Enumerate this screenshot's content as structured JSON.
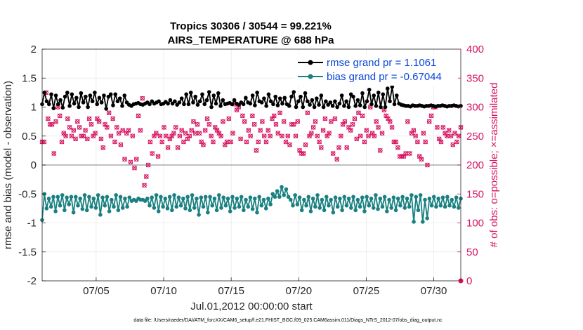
{
  "chart_data": {
    "type": "line",
    "title": "Tropics 30306 / 30544 = 99.221%",
    "subtitle": "AIRS_TEMPERATURE @ 688 hPa",
    "xlabel": "Jul.01,2012 00:00:00 start",
    "ylabel_left": "rmse and bias (model - observation)",
    "ylabel_right": "# of obs: o=possible; ×=assimilated",
    "footnote": "data file: /Users/raeder/DAI/ATM_forcXX/CAM6_setup/f.e21.FHIST_BGC.f09_025.CAM6assim.011/Diags_NTrS_2012-07/obs_diag_output.nc",
    "xlim": [
      1.0,
      32.0
    ],
    "ylim_left": [
      -2,
      2
    ],
    "ylim_right": [
      0,
      400
    ],
    "x_ticks": [
      5,
      10,
      15,
      20,
      25,
      30
    ],
    "x_tick_labels": [
      "07/05",
      "07/10",
      "07/15",
      "07/20",
      "07/25",
      "07/30"
    ],
    "y_left_ticks": [
      -2,
      -1.5,
      -1,
      -0.5,
      0,
      0.5,
      1,
      1.5,
      2
    ],
    "y_left_tick_labels": [
      "-2",
      "-1.5",
      "-1",
      "-0.5",
      "0",
      "0.5",
      "1",
      "1.5",
      "2"
    ],
    "y_right_ticks": [
      0,
      50,
      100,
      150,
      200,
      250,
      300,
      350,
      400
    ],
    "y_right_tick_labels": [
      "0",
      "50",
      "100",
      "150",
      "200",
      "250",
      "300",
      "350",
      "400"
    ],
    "grid": true,
    "legend_position": "top-right",
    "series": [
      {
        "name": "rmse grand pr = 1.1061",
        "axis": "left",
        "color": "#000000",
        "values": [
          1.05,
          1.25,
          1.1,
          1.05,
          1.22,
          0.98,
          1.2,
          1.05,
          1.12,
          0.99,
          1.18,
          1.25,
          1.02,
          1.22,
          1.06,
          1.16,
          1.0,
          1.24,
          1.08,
          1.18,
          1.0,
          1.2,
          1.1,
          1.25,
          1.05,
          1.16,
          1.08,
          1.2,
          0.97,
          1.18,
          1.22,
          1.03,
          1.22,
          1.1,
          1.15,
          1.02,
          1.2,
          1.08,
          1.04,
          1.02,
          1.05,
          1.06,
          1.07,
          1.05,
          1.04,
          1.06,
          1.08,
          1.05,
          1.1,
          1.06,
          1.08,
          1.1,
          1.05,
          1.06,
          1.09,
          1.06,
          1.12,
          1.06,
          1.1,
          1.04,
          1.08,
          1.15,
          1.05,
          1.22,
          1.05,
          1.25,
          1.08,
          1.18,
          1.04,
          1.1,
          1.22,
          1.05,
          1.12,
          1.26,
          1.0,
          1.2,
          1.06,
          1.24,
          1.02,
          1.12,
          1.05,
          1.06,
          1.07,
          1.05,
          1.12,
          1.06,
          1.04,
          1.08,
          1.05,
          1.16,
          1.08,
          1.06,
          1.2,
          1.03,
          1.25,
          1.1,
          1.08,
          1.15,
          1.02,
          1.22,
          1.1,
          1.05,
          1.18,
          1.03,
          1.15,
          1.06,
          1.16,
          1.05,
          1.02,
          1.18,
          1.26,
          1.0,
          1.1,
          1.18,
          1.0,
          1.24,
          1.1,
          1.04,
          1.12,
          1.0,
          1.15,
          1.04,
          1.2,
          1.0,
          1.1,
          1.04,
          1.08,
          1.02,
          1.1,
          1.0,
          1.06,
          1.2,
          1.02,
          1.1,
          1.0,
          1.22,
          1.18,
          1.02,
          1.12,
          1.03,
          1.24,
          1.0,
          1.1,
          1.3,
          1.05,
          1.2,
          1.02,
          1.25,
          1.0,
          1.22,
          1.0,
          1.32,
          1.1,
          1.35,
          1.05,
          1.2,
          1.06,
          1.04,
          1.03,
          1.02,
          1.02,
          1.01,
          1.03,
          1.02,
          1.02,
          1.03,
          1.02,
          1.01,
          1.02,
          1.02,
          1.03,
          1.02,
          1.01,
          1.02,
          1.02,
          1.03,
          1.02,
          1.01,
          1.02,
          1.02,
          1.03,
          1.02,
          1.01,
          1.02
        ]
      },
      {
        "name": "bias grand pr = -0.67044",
        "axis": "left",
        "color": "#1a8080",
        "values": [
          -0.95,
          -0.5,
          -0.75,
          -0.58,
          -0.72,
          -0.55,
          -0.8,
          -0.55,
          -0.7,
          -0.52,
          -0.78,
          -0.56,
          -0.68,
          -0.55,
          -0.82,
          -0.55,
          -0.7,
          -0.58,
          -0.76,
          -0.52,
          -0.78,
          -0.55,
          -0.72,
          -0.58,
          -0.74,
          -0.52,
          -0.86,
          -0.56,
          -0.7,
          -0.55,
          -0.8,
          -0.6,
          -0.72,
          -0.52,
          -0.78,
          -0.55,
          -0.74,
          -0.58,
          -0.72,
          -0.56,
          -0.62,
          -0.6,
          -0.62,
          -0.58,
          -0.6,
          -0.6,
          -0.62,
          -0.58,
          -0.7,
          -0.56,
          -0.74,
          -0.52,
          -0.8,
          -0.55,
          -0.72,
          -0.58,
          -0.75,
          -0.55,
          -0.78,
          -0.52,
          -0.72,
          -0.56,
          -0.7,
          -0.58,
          -0.75,
          -0.55,
          -0.78,
          -0.52,
          -0.74,
          -0.58,
          -0.86,
          -0.56,
          -0.72,
          -0.55,
          -0.82,
          -0.55,
          -0.7,
          -0.58,
          -0.78,
          -0.52,
          -0.74,
          -0.56,
          -0.7,
          -0.58,
          -0.8,
          -0.55,
          -0.74,
          -0.58,
          -0.72,
          -0.55,
          -0.78,
          -0.6,
          -0.72,
          -0.56,
          -0.76,
          -0.58,
          -0.82,
          -0.55,
          -0.7,
          -0.6,
          -0.75,
          -0.58,
          -0.68,
          -0.5,
          -0.55,
          -0.45,
          -0.55,
          -0.38,
          -0.52,
          -0.42,
          -0.55,
          -0.6,
          -0.7,
          -0.52,
          -0.68,
          -0.56,
          -0.78,
          -0.6,
          -0.7,
          -0.55,
          -0.8,
          -0.58,
          -0.72,
          -0.52,
          -0.74,
          -0.6,
          -0.78,
          -0.55,
          -0.7,
          -0.6,
          -0.82,
          -0.56,
          -0.72,
          -0.58,
          -0.78,
          -0.55,
          -0.7,
          -0.58,
          -0.74,
          -0.55,
          -0.78,
          -0.6,
          -0.72,
          -0.56,
          -0.8,
          -0.55,
          -0.7,
          -0.58,
          -0.74,
          -0.52,
          -0.76,
          -0.58,
          -0.72,
          -0.55,
          -0.8,
          -0.6,
          -0.74,
          -0.56,
          -0.78,
          -0.58,
          -0.7,
          -0.55,
          -0.74,
          -0.58,
          -0.72,
          -0.52,
          -0.98,
          -0.55,
          -0.78,
          -0.52,
          -0.98,
          -0.6,
          -0.92,
          -0.58,
          -0.7,
          -0.55,
          -0.72,
          -0.58,
          -0.7,
          -0.56,
          -0.72,
          -0.55,
          -0.7,
          -0.6,
          -0.72,
          -0.56,
          -0.74,
          -0.58
        ]
      },
      {
        "name": "# of obs possible / assimilated",
        "axis": "right",
        "color": "#d6125f",
        "values": [
          240,
          240,
          325,
          280,
          270,
          270,
          220,
          275,
          300,
          285,
          240,
          255,
          250,
          280,
          265,
          250,
          260,
          245,
          275,
          265,
          250,
          250,
          260,
          245,
          280,
          270,
          250,
          255,
          280,
          275,
          245,
          230,
          270,
          265,
          290,
          250,
          280,
          240,
          265,
          255,
          235,
          260,
          210,
          255,
          260,
          205,
          250,
          195,
          210,
          285,
          260,
          315,
          165,
          180,
          200,
          240,
          220,
          250,
          255,
          215,
          250,
          240,
          265,
          250,
          230,
          245,
          250,
          255,
          265,
          230,
          250,
          260,
          240,
          255,
          245,
          250,
          260,
          275,
          255,
          270,
          255,
          240,
          235,
          260,
          280,
          270,
          250,
          240,
          265,
          260,
          255,
          250,
          275,
          235,
          240,
          280,
          240,
          255,
          305,
          295,
          300,
          245,
          285,
          275,
          240,
          260,
          250,
          285,
          270,
          225,
          240,
          260,
          275,
          250,
          240,
          260,
          250,
          280,
          285,
          270,
          255,
          290,
          250,
          275,
          240,
          250,
          235,
          270,
          270,
          250,
          275,
          225,
          220,
          220,
          235,
          290,
          250,
          255,
          265,
          275,
          250,
          240,
          230,
          260,
          280,
          250,
          255,
          275,
          220,
          280,
          210,
          230,
          250,
          270,
          275,
          230,
          265,
          260,
          270,
          280,
          245,
          290,
          250,
          285,
          240,
          260,
          250,
          300,
          255,
          250,
          275,
          265,
          225,
          255,
          295,
          285,
          280,
          275,
          265,
          240,
          240,
          230,
          215,
          215,
          215,
          220,
          275,
          220,
          255,
          260,
          250,
          240,
          215,
          210,
          255,
          240,
          200,
          275,
          285,
          300,
          300,
          265,
          245,
          240,
          265,
          255,
          250,
          260,
          250,
          235,
          255,
          240,
          250,
          265
        ]
      }
    ]
  }
}
